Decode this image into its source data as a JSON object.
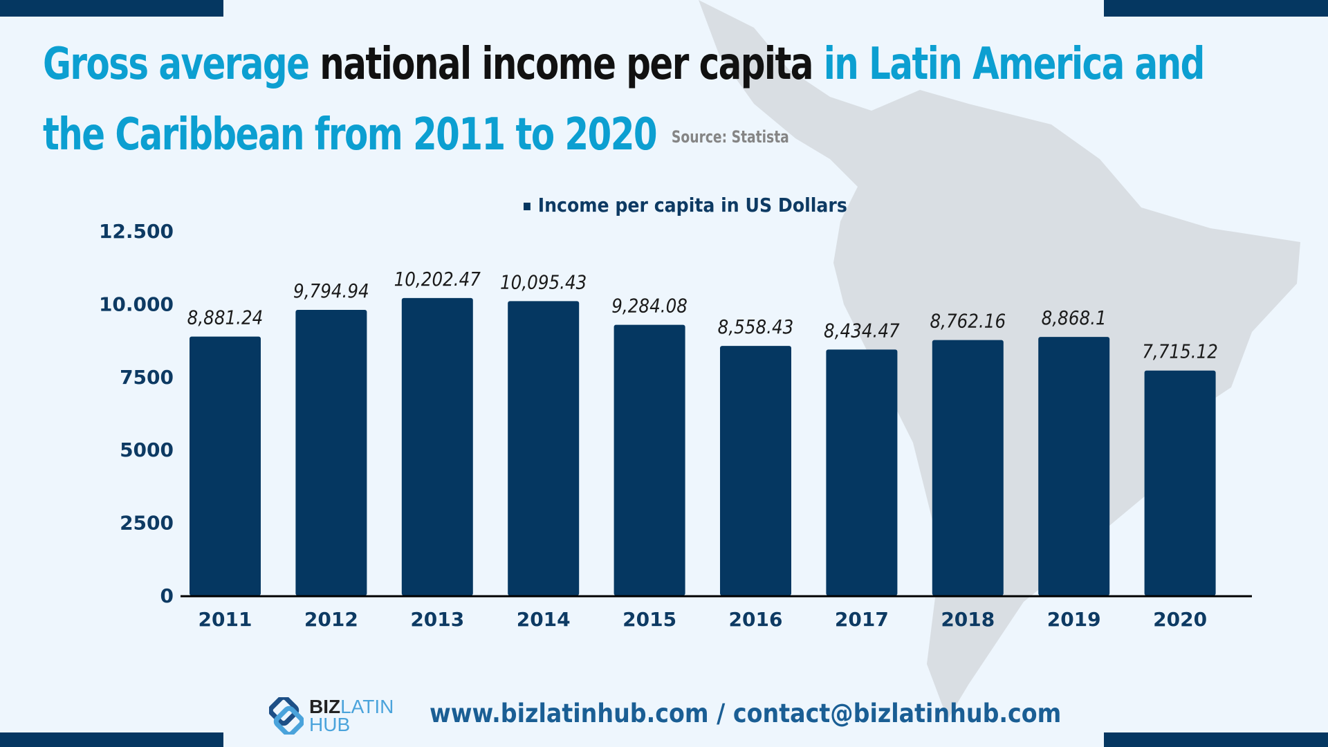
{
  "title": {
    "part1": "Gross average",
    "part2": "national income per capita",
    "part3": "in Latin America and",
    "line2": "the Caribbean from 2011 to 2020",
    "source": "Source: Statista"
  },
  "colors": {
    "accent": "#0c9fd1",
    "bar": "#053761",
    "axis_text": "#0d3a63",
    "background": "#eef6fd"
  },
  "chart_data": {
    "type": "bar",
    "categories": [
      "2011",
      "2012",
      "2013",
      "2014",
      "2015",
      "2016",
      "2017",
      "2018",
      "2019",
      "2020"
    ],
    "series": [
      {
        "name": "Income per capita in US Dollars",
        "values": [
          8881.24,
          9794.94,
          10202.47,
          10095.43,
          9284.08,
          8558.43,
          8434.47,
          8762.16,
          8868.1,
          7715.12
        ]
      }
    ],
    "data_labels": [
      "8,881.24",
      "9,794.94",
      "10,202.47",
      "10,095.43",
      "9,284.08",
      "8,558.43",
      "8,434.47",
      "8,762.16",
      "8,868.1",
      "7,715.12"
    ],
    "yticks": [
      0,
      2500,
      5000,
      7500,
      10000,
      12500
    ],
    "ytick_labels": [
      "0",
      "2500",
      "5000",
      "7500",
      "10.000",
      "12.500"
    ],
    "ylim": [
      0,
      12500
    ],
    "legend_position": "top-center",
    "grid": false
  },
  "footer": {
    "logo": {
      "biz": "BIZ",
      "latin": "LATIN",
      "hub": "HUB"
    },
    "contact": "www.bizlatinhub.com / contact@bizlatinhub.com"
  }
}
